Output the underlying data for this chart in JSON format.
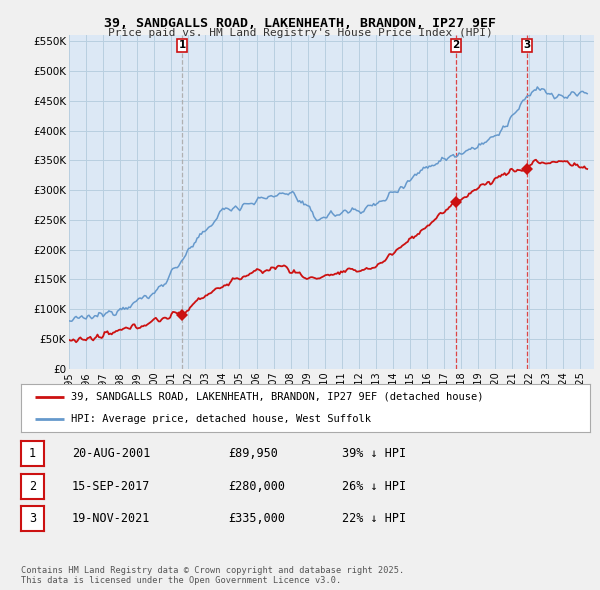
{
  "title": "39, SANDGALLS ROAD, LAKENHEATH, BRANDON, IP27 9EF",
  "subtitle": "Price paid vs. HM Land Registry's House Price Index (HPI)",
  "ylim": [
    0,
    560000
  ],
  "yticks": [
    0,
    50000,
    100000,
    150000,
    200000,
    250000,
    300000,
    350000,
    400000,
    450000,
    500000,
    550000
  ],
  "ytick_labels": [
    "£0",
    "£50K",
    "£100K",
    "£150K",
    "£200K",
    "£250K",
    "£300K",
    "£350K",
    "£400K",
    "£450K",
    "£500K",
    "£550K"
  ],
  "background_color": "#f0f0f0",
  "plot_background": "#dce8f5",
  "grid_color": "#b8cfe0",
  "hpi_color": "#6699cc",
  "property_color": "#cc1111",
  "dashed_line_color_gray": "#aaaaaa",
  "dashed_line_color_red": "#dd3333",
  "sales": [
    {
      "date_num": 2001.64,
      "price": 89950,
      "label": "1",
      "dashed": "gray"
    },
    {
      "date_num": 2017.71,
      "price": 280000,
      "label": "2",
      "dashed": "red"
    },
    {
      "date_num": 2021.88,
      "price": 335000,
      "label": "3",
      "dashed": "red"
    }
  ],
  "legend_property": "39, SANDGALLS ROAD, LAKENHEATH, BRANDON, IP27 9EF (detached house)",
  "legend_hpi": "HPI: Average price, detached house, West Suffolk",
  "table_rows": [
    {
      "num": "1",
      "date": "20-AUG-2001",
      "price": "£89,950",
      "hpi": "39% ↓ HPI"
    },
    {
      "num": "2",
      "date": "15-SEP-2017",
      "price": "£280,000",
      "hpi": "26% ↓ HPI"
    },
    {
      "num": "3",
      "date": "19-NOV-2021",
      "price": "£335,000",
      "hpi": "22% ↓ HPI"
    }
  ],
  "footer": "Contains HM Land Registry data © Crown copyright and database right 2025.\nThis data is licensed under the Open Government Licence v3.0."
}
